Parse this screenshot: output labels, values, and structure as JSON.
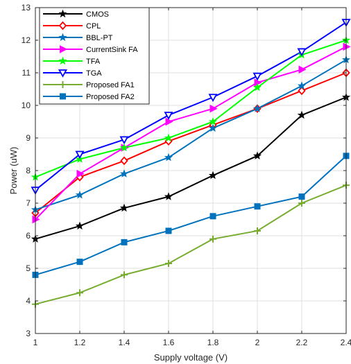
{
  "chart_data": {
    "type": "line",
    "xlabel": "Supply voltage (V)",
    "ylabel": "Power (uW)",
    "xlim": [
      1,
      2.4
    ],
    "ylim": [
      3,
      13
    ],
    "x": [
      1,
      1.2,
      1.4,
      1.6,
      1.8,
      2,
      2.2,
      2.4
    ],
    "x_tick_labels": [
      "1",
      "1.2",
      "1.4",
      "1.6",
      "1.8",
      "2",
      "2.2",
      "2.4"
    ],
    "y_ticks": [
      3,
      4,
      5,
      6,
      7,
      8,
      9,
      10,
      11,
      12,
      13
    ],
    "y_tick_labels": [
      "3",
      "4",
      "5",
      "6",
      "7",
      "8",
      "9",
      "10",
      "11",
      "12",
      "13"
    ],
    "grid": true,
    "legend_position": "top-left",
    "series": [
      {
        "name": "CMOS",
        "color": "#000000",
        "marker": "star",
        "values": [
          5.9,
          6.3,
          6.85,
          7.2,
          7.85,
          8.45,
          9.7,
          10.25
        ]
      },
      {
        "name": "CPL",
        "color": "#ff0000",
        "marker": "diamond",
        "values": [
          6.7,
          7.8,
          8.3,
          8.9,
          9.4,
          9.9,
          10.45,
          11.0
        ]
      },
      {
        "name": "BBL-PT",
        "color": "#0072bd",
        "marker": "star",
        "values": [
          6.8,
          7.25,
          7.9,
          8.4,
          9.3,
          9.9,
          10.6,
          11.4
        ]
      },
      {
        "name": "CurrentSink FA",
        "color": "#ff00ff",
        "marker": "triangle-right",
        "values": [
          6.5,
          7.9,
          8.7,
          9.5,
          9.9,
          10.7,
          11.1,
          11.8
        ]
      },
      {
        "name": "TFA",
        "color": "#00ff00",
        "marker": "star",
        "values": [
          7.8,
          8.35,
          8.7,
          9.0,
          9.5,
          10.55,
          11.55,
          12.0
        ]
      },
      {
        "name": "TGA",
        "color": "#0000ff",
        "marker": "triangle-down",
        "values": [
          7.4,
          8.5,
          8.95,
          9.7,
          10.25,
          10.9,
          11.65,
          12.55
        ]
      },
      {
        "name": "Proposed FA1",
        "color": "#77ac30",
        "marker": "plus",
        "values": [
          3.9,
          4.25,
          4.8,
          5.15,
          5.9,
          6.15,
          7.0,
          7.55
        ]
      },
      {
        "name": "Proposed FA2",
        "color": "#0072bd",
        "marker": "square",
        "values": [
          4.8,
          5.2,
          5.8,
          6.15,
          6.6,
          6.9,
          7.2,
          8.45
        ]
      }
    ]
  }
}
